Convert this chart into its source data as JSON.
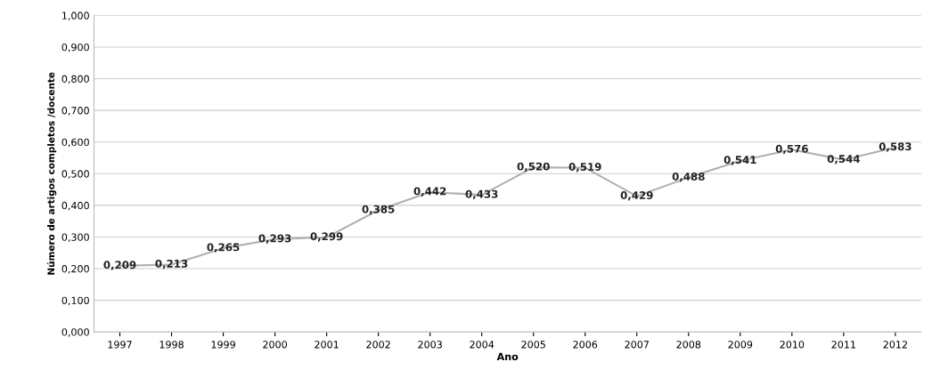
{
  "chart_data": {
    "type": "line",
    "xlabel": "Ano",
    "ylabel": "Número de artigos completos /docente",
    "categories": [
      "1997",
      "1998",
      "1999",
      "2000",
      "2001",
      "2002",
      "2003",
      "2004",
      "2005",
      "2006",
      "2007",
      "2008",
      "2009",
      "2010",
      "2011",
      "2012"
    ],
    "series": [
      {
        "color": "#b0b0b0",
        "values": [
          0.209,
          0.213,
          0.265,
          0.293,
          0.299,
          0.385,
          0.442,
          0.433,
          0.52,
          0.519,
          0.429,
          0.488,
          0.541,
          0.576,
          0.544,
          0.583
        ],
        "value_labels": [
          "0,209",
          "0,213",
          "0,265",
          "0,293",
          "0,299",
          "0,385",
          "0,442",
          "0,433",
          "0,520",
          "0,519",
          "0,429",
          "0,488",
          "0,541",
          "0,576",
          "0,544",
          "0,583"
        ]
      }
    ],
    "ylim": [
      0,
      1
    ],
    "yticks": [
      {
        "value": 0,
        "label": "0,000"
      },
      {
        "value": 0.1,
        "label": "0,100"
      },
      {
        "value": 0.2,
        "label": "0,200"
      },
      {
        "value": 0.3,
        "label": "0,300"
      },
      {
        "value": 0.4,
        "label": "0,400"
      },
      {
        "value": 0.5,
        "label": "0,500"
      },
      {
        "value": 0.6,
        "label": "0,600"
      },
      {
        "value": 0.7,
        "label": "0,700"
      },
      {
        "value": 0.8,
        "label": "0,800"
      },
      {
        "value": 0.9,
        "label": "0,900"
      },
      {
        "value": 1,
        "label": "1,000"
      }
    ],
    "grid": "y",
    "line_style": "solid"
  }
}
